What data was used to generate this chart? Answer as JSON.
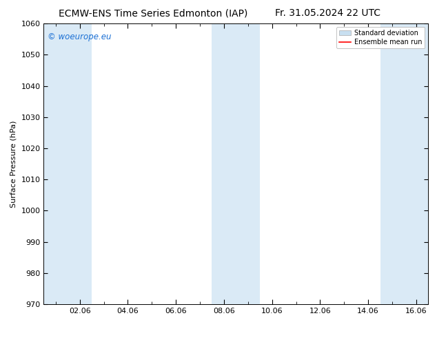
{
  "title_left": "ECMW-ENS Time Series Edmonton (IAP)",
  "title_right": "Fr. 31.05.2024 22 UTC",
  "ylabel": "Surface Pressure (hPa)",
  "ylim": [
    970,
    1060
  ],
  "yticks": [
    970,
    980,
    990,
    1000,
    1010,
    1020,
    1030,
    1040,
    1050,
    1060
  ],
  "xtick_labels": [
    "02.06",
    "04.06",
    "06.06",
    "08.06",
    "10.06",
    "12.06",
    "14.06",
    "16.06"
  ],
  "xtick_positions": [
    2,
    4,
    6,
    8,
    10,
    12,
    14,
    16
  ],
  "xlim": [
    0.5,
    16.5
  ],
  "shaded_bands": [
    {
      "xmin": 0.5,
      "xmax": 2.5
    },
    {
      "xmin": 7.5,
      "xmax": 9.5
    },
    {
      "xmin": 14.5,
      "xmax": 16.5
    }
  ],
  "band_color": "#daeaf6",
  "background_color": "#ffffff",
  "watermark_text": "© woeurope.eu",
  "watermark_color": "#1a6fd4",
  "legend_std_color": "#c8dff0",
  "legend_mean_color": "#ff0000",
  "title_fontsize": 10,
  "axis_fontsize": 8,
  "tick_fontsize": 8,
  "ylabel_fontsize": 8
}
